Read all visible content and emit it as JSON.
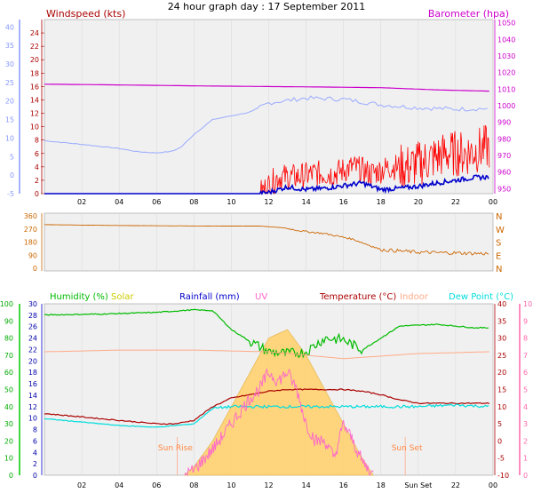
{
  "title": "24 hour graph day : 17 September 2011",
  "colors": {
    "windspeed": "#ff0000",
    "windgust_axis": "#8899ff",
    "barometer": "#cc00cc",
    "winddir": "#cc6600",
    "humidity": "#00bb00",
    "solar": "#ffd070",
    "rainfall": "#0000cc",
    "uv": "#ff66cc",
    "temperature": "#aa0000",
    "indoor": "#ffaa88",
    "dewpoint": "#00dddd",
    "uvaxis": "#ff66aa"
  },
  "chart_data": [
    {
      "type": "line",
      "name": "wind-barometer",
      "x_ticks": [
        "02",
        "04",
        "06",
        "08",
        "10",
        "12",
        "14",
        "16",
        "18",
        "20",
        "22",
        "00"
      ],
      "axes": {
        "windspeed_label": "Windspeed (kts)",
        "windspeed_ticks": [
          "0",
          "2",
          "4",
          "6",
          "8",
          "10",
          "12",
          "14",
          "16",
          "18",
          "20",
          "22",
          "24"
        ],
        "gust_ticks": [
          "-5",
          "0",
          "5",
          "10",
          "15",
          "20",
          "25",
          "30",
          "35",
          "40"
        ],
        "barometer_label": "Barometer (hpa)",
        "barometer_ticks": [
          "950",
          "960",
          "970",
          "980",
          "990",
          "1000",
          "1010",
          "1020",
          "1030",
          "1040",
          "1050"
        ]
      },
      "series": [
        {
          "key": "barometer",
          "hours": [
            0,
            3,
            6,
            9,
            12,
            15,
            18,
            21,
            23.8
          ],
          "values": [
            1013,
            1012.7,
            1012.3,
            1011.9,
            1011.6,
            1011.3,
            1010.9,
            1009.6,
            1008.8
          ]
        },
        {
          "key": "blue_light",
          "hours": [
            0,
            2,
            4,
            5,
            6,
            6.8,
            7.3,
            8,
            9,
            10,
            11,
            12,
            14,
            16,
            18,
            20,
            22,
            23.8
          ],
          "values": [
            9.3,
            8.3,
            7.2,
            6.3,
            6.0,
            6.4,
            7.5,
            11.0,
            15.0,
            16.0,
            17.0,
            19.5,
            20.8,
            20.5,
            19.0,
            18.2,
            17.8,
            18.0
          ]
        },
        {
          "key": "windspeed",
          "hours": [
            0,
            11.5,
            12.5,
            13.5,
            14.5,
            15.5,
            16.5,
            17.5,
            18.5,
            19.5,
            20.5,
            21.5,
            22.5,
            23.8
          ],
          "values": [
            0,
            0,
            2.5,
            2.5,
            3,
            3,
            4,
            3,
            4,
            4,
            5,
            6,
            6,
            7
          ]
        },
        {
          "key": "windavg",
          "hours": [
            0,
            11.5,
            12,
            13,
            14,
            15,
            16,
            17,
            18,
            19,
            20,
            21,
            22,
            23,
            23.8
          ],
          "values": [
            0,
            0,
            0.2,
            1.0,
            0.6,
            0.8,
            1.2,
            1.6,
            0.6,
            0.8,
            1.1,
            1.6,
            2.0,
            2.4,
            2.5
          ]
        }
      ]
    },
    {
      "type": "line",
      "name": "wind-direction",
      "x_ticks": [],
      "axes": {
        "left_ticks": [
          "0",
          "90",
          "180",
          "270",
          "360"
        ],
        "right_ticks": [
          "N",
          "E",
          "S",
          "W",
          "N"
        ]
      },
      "series": [
        {
          "key": "winddir",
          "hours": [
            0,
            3,
            6,
            9,
            11.5,
            12.8,
            13.8,
            15,
            16.5,
            18,
            20,
            22,
            23.8
          ],
          "values": [
            300,
            295,
            292,
            290,
            290,
            278,
            255,
            238,
            200,
            128,
            110,
            105,
            100
          ]
        }
      ]
    },
    {
      "type": "line",
      "name": "humidity-temperature",
      "x_ticks": [
        "02",
        "04",
        "06",
        "08",
        "10",
        "12",
        "14",
        "16",
        "18",
        "Sun Set",
        "22",
        "00"
      ],
      "legend": [
        "Humidity (%)",
        "Solar",
        "Rainfall (mm)",
        "UV",
        "Temperature (°C)",
        "Indoor",
        "Dew Point (°C)"
      ],
      "annotations": [
        "Sun Rise",
        "Sun Set"
      ],
      "axes": {
        "humidity_ticks": [
          "0",
          "10",
          "20",
          "30",
          "40",
          "50",
          "60",
          "70",
          "80",
          "90",
          "100"
        ],
        "rainfall_ticks": [
          "0",
          "2",
          "4",
          "6",
          "8",
          "10",
          "12",
          "14",
          "16",
          "18",
          "20",
          "22",
          "24",
          "26",
          "28",
          "30"
        ],
        "temperature_ticks": [
          "-10",
          "-5",
          "0",
          "5",
          "10",
          "15",
          "20",
          "25",
          "30",
          "35",
          "40"
        ],
        "uv_ticks": [
          "0",
          "1",
          "2",
          "3",
          "4",
          "5",
          "6",
          "7",
          "8",
          "9",
          "10"
        ]
      },
      "series": [
        {
          "key": "humidity",
          "hours": [
            0,
            3,
            6,
            8,
            9,
            10,
            11,
            12,
            13,
            14,
            15,
            16,
            17,
            18,
            19,
            21,
            23,
            23.8
          ],
          "values": [
            93.5,
            94,
            95,
            96.5,
            96,
            85,
            78,
            72,
            71,
            72,
            80,
            79,
            73,
            80,
            87,
            88,
            86,
            86
          ]
        },
        {
          "key": "indoor",
          "hours": [
            0,
            4,
            8,
            12,
            16,
            20,
            23.8
          ],
          "values": [
            26,
            26.5,
            26.5,
            26,
            24,
            25.5,
            26
          ]
        },
        {
          "key": "temperature",
          "hours": [
            0,
            2,
            4,
            6,
            7,
            8,
            9,
            10,
            11,
            12,
            13,
            14,
            15,
            16,
            17,
            18,
            19,
            20,
            22,
            23.8
          ],
          "values": [
            8,
            7,
            6,
            5,
            5,
            6,
            10,
            12.5,
            13.5,
            14.5,
            15,
            15,
            15,
            15,
            14.5,
            13.5,
            12,
            11,
            11,
            11
          ]
        },
        {
          "key": "dewpoint",
          "hours": [
            0,
            2,
            4,
            6,
            7,
            8,
            9,
            10,
            11,
            12,
            13,
            14,
            16,
            18,
            20,
            22,
            23.8
          ],
          "values": [
            6.5,
            5.5,
            4.5,
            4,
            4.5,
            5,
            9.5,
            10,
            10,
            10,
            10,
            10,
            10,
            10,
            10,
            10.5,
            10
          ]
        },
        {
          "key": "solar",
          "hours": [
            7.5,
            8,
            9,
            10,
            11,
            12,
            13,
            14,
            15,
            16,
            17,
            17.6
          ],
          "values": [
            0,
            0.5,
            2,
            4,
            6,
            8,
            8.5,
            7,
            5,
            3,
            1,
            0
          ]
        },
        {
          "key": "uv",
          "hours": [
            7.5,
            8,
            9,
            10,
            11,
            11.5,
            12,
            12.5,
            13,
            13.5,
            14,
            14.5,
            15,
            15.5,
            16,
            16.5,
            17,
            17.6
          ],
          "values": [
            0,
            0.3,
            1.5,
            3,
            4.5,
            5,
            6,
            5.5,
            6,
            5,
            3,
            2,
            2,
            1,
            3,
            2,
            0.8,
            0
          ]
        }
      ]
    }
  ]
}
